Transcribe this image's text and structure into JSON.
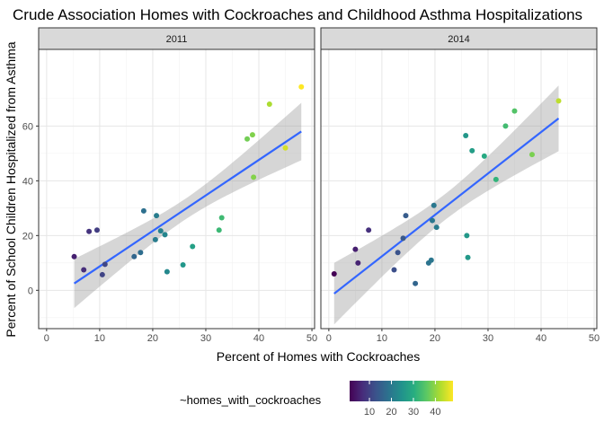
{
  "chart_data": {
    "type": "scatter",
    "title": "Crude Association Homes with Cockroaches and Childhood Asthma Hospitalizations",
    "xlabel": "Percent of Homes with Cockroaches",
    "ylabel": "Percent of School Children Hospitalized from Asthma",
    "xlim": [
      -1.5,
      50.5
    ],
    "ylim": [
      -14,
      88
    ],
    "x_ticks": [
      0,
      10,
      20,
      30,
      40,
      50
    ],
    "y_ticks": [
      0,
      20,
      40,
      60
    ],
    "x_tick_labels": [
      "0",
      "10",
      "20",
      "30",
      "40",
      "50"
    ],
    "y_tick_labels": [
      "0",
      "20",
      "40",
      "60"
    ],
    "grid": true,
    "trend": "linear fit with grey confidence band",
    "trend_color": "#3366FF",
    "color_scale": "viridis",
    "color_range": [
      1,
      48
    ],
    "legend": {
      "title": "~homes_with_cockroaches",
      "position": "bottom",
      "ticks": [
        10,
        20,
        30,
        40
      ],
      "tick_labels": [
        "10",
        "20",
        "30",
        "40"
      ]
    },
    "panels": [
      {
        "label": "2011",
        "points": [
          [
            5.2,
            12.3
          ],
          [
            7,
            7.5
          ],
          [
            8,
            21.5
          ],
          [
            9.5,
            22
          ],
          [
            10.5,
            5.7
          ],
          [
            11,
            9.5
          ],
          [
            16.5,
            12.3
          ],
          [
            17.7,
            13.8
          ],
          [
            18.3,
            29
          ],
          [
            20.5,
            18.5
          ],
          [
            20.7,
            27.3
          ],
          [
            21.5,
            21.7
          ],
          [
            22.3,
            20.3
          ],
          [
            22.7,
            6.8
          ],
          [
            25.7,
            9.3
          ],
          [
            27.5,
            16
          ],
          [
            32.5,
            22
          ],
          [
            33,
            26.5
          ],
          [
            37.8,
            55.3
          ],
          [
            38.8,
            56.8
          ],
          [
            39,
            41.3
          ],
          [
            42,
            68
          ],
          [
            45,
            52
          ],
          [
            48,
            74.3
          ]
        ],
        "fit": {
          "x0": 5.2,
          "y0": 2.5,
          "x1": 48,
          "y1": 58
        },
        "band": {
          "lo0": -6.5,
          "hi0": 11.5,
          "lo1": 47.5,
          "hi1": 68.5
        }
      },
      {
        "label": "2014",
        "points": [
          [
            1,
            6
          ],
          [
            5,
            15
          ],
          [
            5.5,
            10
          ],
          [
            7.5,
            22
          ],
          [
            12.3,
            7.5
          ],
          [
            13,
            13.8
          ],
          [
            14,
            19
          ],
          [
            14.5,
            27.3
          ],
          [
            16.3,
            2.5
          ],
          [
            18.8,
            10
          ],
          [
            19.3,
            11
          ],
          [
            19.5,
            25.5
          ],
          [
            19.8,
            31
          ],
          [
            20.3,
            23
          ],
          [
            25.8,
            56.5
          ],
          [
            26,
            20
          ],
          [
            26.2,
            12
          ],
          [
            27,
            51
          ],
          [
            29.3,
            49
          ],
          [
            31.5,
            40.5
          ],
          [
            33.3,
            60
          ],
          [
            35,
            65.5
          ],
          [
            38.3,
            49.6
          ],
          [
            43.3,
            69.2
          ]
        ],
        "fit": {
          "x0": 1,
          "y0": -1.2,
          "x1": 43.3,
          "y1": 62.8
        },
        "band": {
          "lo0": -12.5,
          "hi0": 10,
          "lo1": 51,
          "hi1": 75
        }
      }
    ]
  }
}
